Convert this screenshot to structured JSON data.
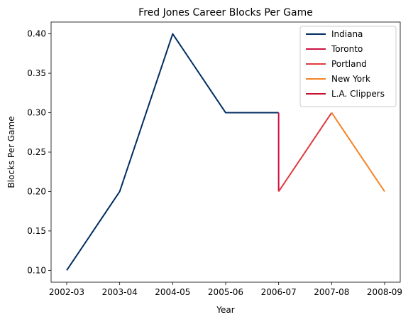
{
  "chart_data": {
    "type": "line",
    "title": "Fred Jones  Career Blocks Per Game",
    "xlabel": "Year",
    "ylabel": "Blocks Per Game",
    "categories": [
      "2002-03",
      "2003-04",
      "2004-05",
      "2005-06",
      "2006-07",
      "2007-08",
      "2008-09"
    ],
    "ylim": [
      0.085,
      0.415
    ],
    "yticks": [
      0.1,
      0.15,
      0.2,
      0.25,
      0.3,
      0.35,
      0.4
    ],
    "ytick_labels": [
      "0.10",
      "0.15",
      "0.20",
      "0.25",
      "0.30",
      "0.35",
      "0.40"
    ],
    "grid": false,
    "legend_position": "top-right",
    "series": [
      {
        "name": "Indiana",
        "color": "#002D62",
        "points": [
          [
            "2002-03",
            0.1
          ],
          [
            "2003-04",
            0.2
          ],
          [
            "2004-05",
            0.4
          ],
          [
            "2005-06",
            0.3
          ],
          [
            "2006-07",
            0.3
          ]
        ]
      },
      {
        "name": "Toronto",
        "color": "#CE1141",
        "points": [
          [
            "2006-07",
            0.3
          ],
          [
            "2006-07",
            0.2
          ]
        ]
      },
      {
        "name": "Portland",
        "color": "#E03A3E",
        "points": [
          [
            "2006-07",
            0.2
          ],
          [
            "2007-08",
            0.3
          ]
        ]
      },
      {
        "name": "New York",
        "color": "#F58426",
        "points": [
          [
            "2007-08",
            0.3
          ],
          [
            "2008-09",
            0.2
          ]
        ]
      },
      {
        "name": "L.A. Clippers",
        "color": "#C8102E",
        "points": []
      }
    ]
  }
}
